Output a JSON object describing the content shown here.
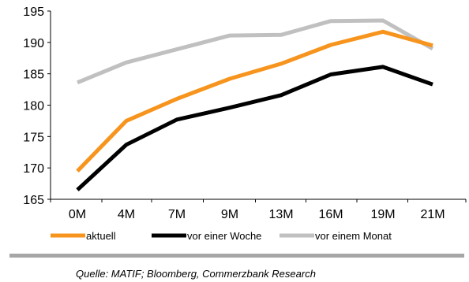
{
  "chart_data": {
    "type": "line",
    "categories": [
      "0M",
      "4M",
      "7M",
      "9M",
      "13M",
      "16M",
      "19M",
      "21M"
    ],
    "ylim": [
      165,
      195
    ],
    "yticks": [
      165,
      170,
      175,
      180,
      185,
      190,
      195
    ],
    "grid": false,
    "legend_position": "bottom",
    "series": [
      {
        "name": "aktuell",
        "color": "#f7941d",
        "values": [
          169.5,
          177.5,
          181.0,
          184.2,
          186.6,
          189.6,
          191.7,
          189.5
        ]
      },
      {
        "name": "vor einer Woche",
        "color": "#000000",
        "values": [
          166.5,
          173.7,
          177.7,
          179.6,
          181.6,
          184.9,
          186.1,
          183.3
        ]
      },
      {
        "name": "vor einem Monat",
        "color": "#c0c0c0",
        "values": [
          183.6,
          186.8,
          188.9,
          191.1,
          191.2,
          193.4,
          193.5,
          189.0
        ]
      }
    ]
  },
  "source": "Quelle: MATIF; Bloomberg, Commerzbank Research"
}
